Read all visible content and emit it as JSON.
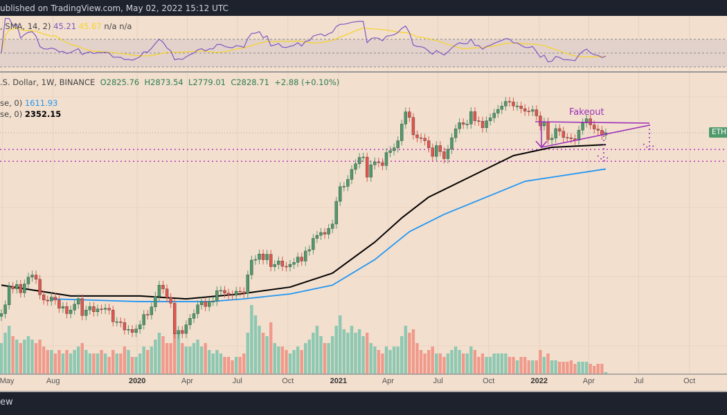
{
  "header": {
    "published": "ublished on TradingView.com, May 02, 2022 15:12 UTC"
  },
  "rsi_legend": {
    "prefix": ", SMA, 14, 2)",
    "rsi": "45.21",
    "sma": "45.67",
    "na1": "n/a",
    "na2": "n/a",
    "rsi_color": "#7e57c2",
    "sma_color": "#f5d327"
  },
  "main_legend": {
    "symbol": ".S. Dollar, 1W, BINANCE",
    "open": "O2825.76",
    "high": "H2873.54",
    "low": "L2779.01",
    "close": "C2828.71",
    "change": "+2.88 (+0.10%)",
    "ma1_prefix": "se, 0)",
    "ma1_value": "1611.93",
    "ma1_color": "#2196f3",
    "ma2_prefix": "se, 0)",
    "ma2_value": "2352.15",
    "ma2_color": "#000000"
  },
  "price_label": "ETHU",
  "annotation": {
    "text": "Fakeout",
    "color": "#9c30b8"
  },
  "footer": {
    "logo_text": "ew"
  },
  "colors": {
    "background": "#f2dfce",
    "up": "#4f9a6b",
    "down": "#e0564c",
    "vol_up": "#8cc8b2",
    "vol_down": "#f09a8c",
    "bar": "#1e222d"
  },
  "chart_data": {
    "type": "candlestick",
    "interval": "1W",
    "start": "2019-04-29",
    "scale": "log",
    "last_close": 2828.71,
    "closes": [
      170,
      195,
      260,
      250,
      268,
      235,
      270,
      300,
      310,
      290,
      228,
      210,
      207,
      220,
      210,
      185,
      190,
      170,
      180,
      197,
      215,
      165,
      180,
      190,
      175,
      183,
      182,
      185,
      180,
      150,
      150,
      148,
      132,
      133,
      127,
      134,
      143,
      168,
      167,
      189,
      223,
      265,
      250,
      218,
      200,
      124,
      131,
      125,
      143,
      158,
      170,
      195,
      205,
      190,
      206,
      206,
      243,
      244,
      234,
      228,
      226,
      241,
      239,
      233,
      311,
      391,
      395,
      430,
      393,
      428,
      353,
      365,
      386,
      355,
      352,
      366,
      377,
      410,
      385,
      450,
      460,
      548,
      575,
      601,
      585,
      640,
      685,
      975,
      1225,
      1230,
      1370,
      1600,
      1750,
      1930,
      1940,
      1420,
      1720,
      1800,
      1780,
      1700,
      2080,
      2140,
      2240,
      2500,
      3240,
      3920,
      3590,
      2740,
      2620,
      2600,
      2500,
      2240,
      1960,
      2320,
      2110,
      1890,
      2190,
      2620,
      3010,
      3310,
      3230,
      3240,
      3930,
      3410,
      3390,
      3060,
      3410,
      3570,
      3840,
      4070,
      4290,
      4610,
      4570,
      4290,
      4290,
      4120,
      3960,
      3950,
      4050,
      3680,
      3150,
      3340,
      2540,
      2600,
      3020,
      2900,
      2630,
      2620,
      2580,
      2520,
      2950,
      3300,
      3520,
      3200,
      3000,
      2940,
      2730,
      2828.71
    ],
    "volume_relative": [
      45,
      60,
      70,
      55,
      50,
      45,
      50,
      55,
      50,
      45,
      50,
      40,
      35,
      35,
      30,
      35,
      30,
      35,
      30,
      35,
      40,
      45,
      35,
      30,
      30,
      30,
      35,
      30,
      25,
      35,
      30,
      30,
      40,
      35,
      25,
      25,
      30,
      40,
      35,
      40,
      50,
      60,
      55,
      45,
      45,
      80,
      60,
      45,
      40,
      40,
      45,
      50,
      40,
      45,
      35,
      30,
      35,
      30,
      25,
      25,
      20,
      25,
      25,
      30,
      60,
      100,
      85,
      70,
      60,
      55,
      75,
      45,
      40,
      40,
      35,
      30,
      35,
      40,
      35,
      45,
      50,
      60,
      70,
      55,
      45,
      45,
      55,
      70,
      85,
      65,
      60,
      70,
      60,
      65,
      55,
      60,
      45,
      40,
      35,
      30,
      40,
      35,
      40,
      40,
      55,
      70,
      60,
      65,
      45,
      35,
      30,
      35,
      40,
      30,
      30,
      25,
      30,
      35,
      40,
      35,
      30,
      30,
      40,
      35,
      25,
      30,
      25,
      25,
      30,
      30,
      30,
      30,
      25,
      25,
      20,
      25,
      25,
      20,
      20,
      20,
      35,
      25,
      30,
      20,
      20,
      18,
      18,
      18,
      20,
      15,
      18,
      18,
      18,
      15,
      12,
      15,
      15,
      3
    ],
    "ma_black": [
      [
        "2019-04-29",
        265
      ],
      [
        "2019-09-02",
        224
      ],
      [
        "2020-01-06",
        224
      ],
      [
        "2020-03-30",
        214
      ],
      [
        "2020-07-06",
        231
      ],
      [
        "2020-10-05",
        257
      ],
      [
        "2020-12-21",
        319
      ],
      [
        "2021-03-08",
        517
      ],
      [
        "2021-04-26",
        753
      ],
      [
        "2021-06-14",
        1041
      ],
      [
        "2021-08-30",
        1437
      ],
      [
        "2021-11-15",
        1984
      ],
      [
        "2022-01-24",
        2257
      ],
      [
        "2022-05-02",
        2352.15
      ]
    ],
    "ma_blue": [
      [
        "2019-07-29",
        214
      ],
      [
        "2020-01-06",
        205
      ],
      [
        "2020-05-11",
        205
      ],
      [
        "2020-07-13",
        214
      ],
      [
        "2020-10-05",
        231
      ],
      [
        "2020-12-21",
        265
      ],
      [
        "2021-03-08",
        394
      ],
      [
        "2021-05-10",
        608
      ],
      [
        "2021-07-12",
        796
      ],
      [
        "2021-09-27",
        1041
      ],
      [
        "2021-12-06",
        1330
      ],
      [
        "2022-05-02",
        1611.93
      ]
    ],
    "levels": [
      2185,
      1816
    ],
    "rsi_bands": [
      70,
      50,
      30
    ],
    "x_ticks": [
      {
        "label": "May",
        "date": "2019-05-01",
        "year": false
      },
      {
        "label": "Aug",
        "date": "2019-08-01",
        "year": false
      },
      {
        "label": "2020",
        "date": "2020-01-01",
        "year": true
      },
      {
        "label": "Apr",
        "date": "2020-04-01",
        "year": false
      },
      {
        "label": "Jul",
        "date": "2020-07-01",
        "year": false
      },
      {
        "label": "Oct",
        "date": "2020-10-01",
        "year": false
      },
      {
        "label": "2021",
        "date": "2021-01-01",
        "year": true
      },
      {
        "label": "Apr",
        "date": "2021-04-01",
        "year": false
      },
      {
        "label": "Jul",
        "date": "2021-07-01",
        "year": false
      },
      {
        "label": "Oct",
        "date": "2021-10-01",
        "year": false
      },
      {
        "label": "2022",
        "date": "2022-01-01",
        "year": true
      },
      {
        "label": "Apr",
        "date": "2022-04-01",
        "year": false
      },
      {
        "label": "Jul",
        "date": "2022-07-01",
        "year": false
      },
      {
        "label": "Oct",
        "date": "2022-10-01",
        "year": false
      }
    ]
  }
}
